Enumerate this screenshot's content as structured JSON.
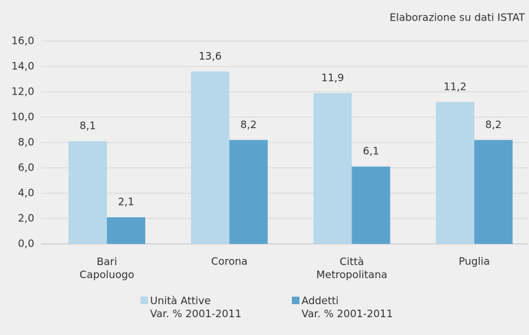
{
  "chart_data": {
    "type": "bar",
    "annotation": "Elaborazione su dati ISTAT",
    "categories": [
      "Bari\nCapoluogo",
      "Corona",
      "Città\nMetropolitana",
      "Puglia"
    ],
    "series": [
      {
        "name": "Unità Attive\nVar. % 2001-2011",
        "color": "#b7d7ea",
        "values": [
          8.1,
          13.6,
          11.9,
          11.2
        ],
        "value_labels": [
          "8,1",
          "13,6",
          "11,9",
          "11,2"
        ]
      },
      {
        "name": "Addetti\nVar. % 2001-2011",
        "color": "#5ba3cc",
        "values": [
          2.1,
          8.2,
          6.1,
          8.2
        ],
        "value_labels": [
          "2,1",
          "8,2",
          "6,1",
          "8,2"
        ]
      }
    ],
    "ylim": [
      0,
      16
    ],
    "yticks": [
      {
        "value": 0,
        "label": "0,0"
      },
      {
        "value": 2,
        "label": "2,0"
      },
      {
        "value": 4,
        "label": "4,0"
      },
      {
        "value": 6,
        "label": "6,0"
      },
      {
        "value": 8,
        "label": "8,0"
      },
      {
        "value": 10,
        "label": "10,0"
      },
      {
        "value": 12,
        "label": "12,0"
      },
      {
        "value": 14,
        "label": "14,0"
      },
      {
        "value": 16,
        "label": "16,0"
      }
    ],
    "grid": true,
    "legend": "bottom"
  }
}
